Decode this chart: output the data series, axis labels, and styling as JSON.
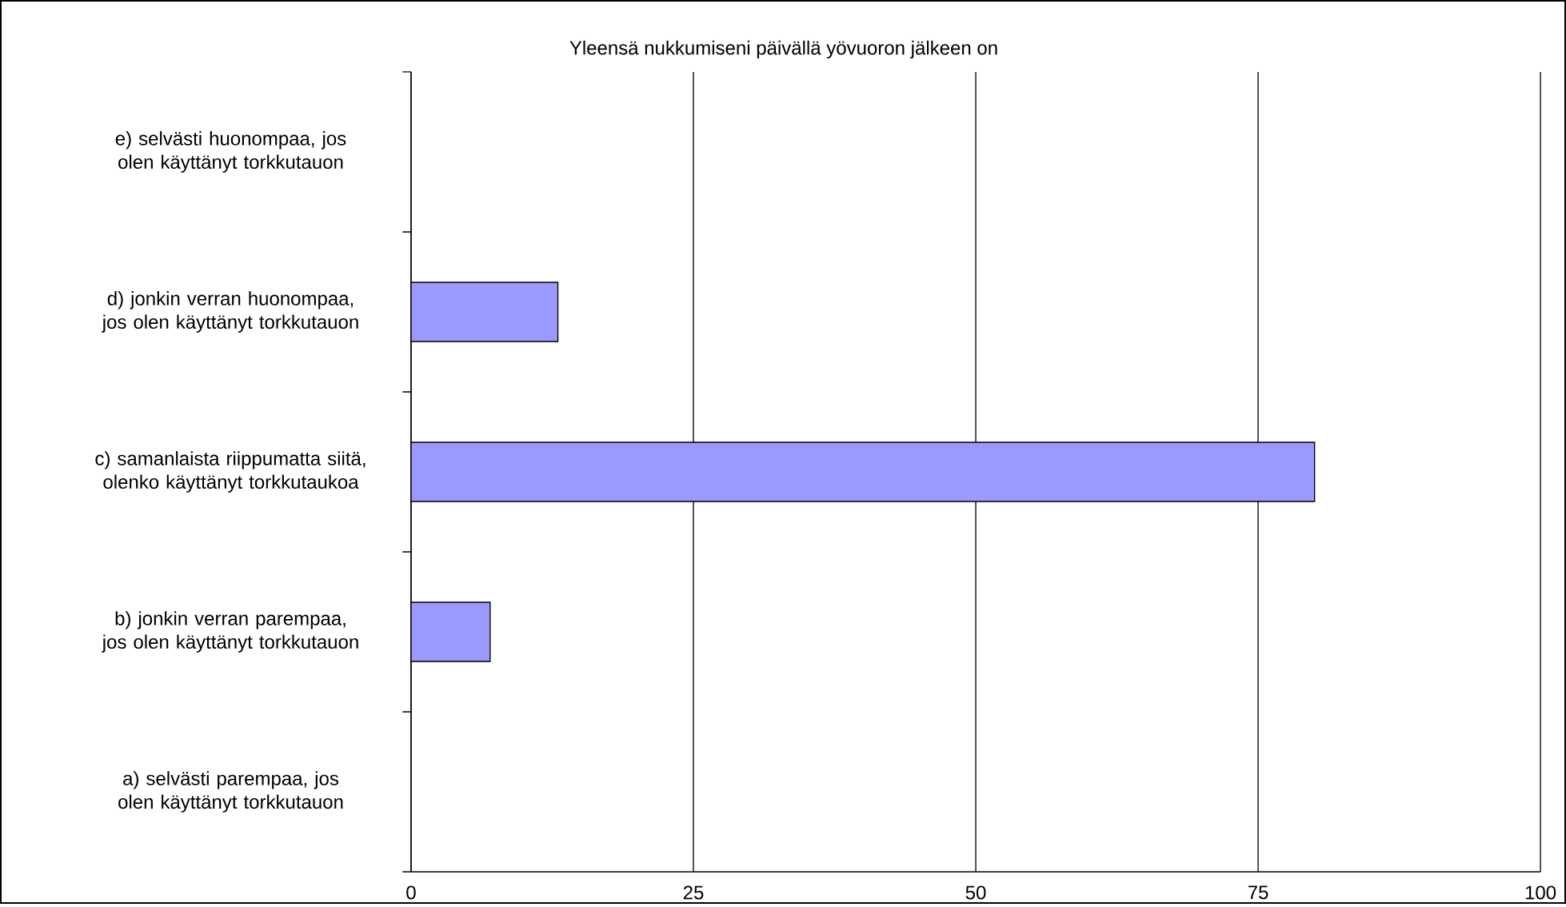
{
  "chart_data": {
    "type": "bar",
    "orientation": "horizontal",
    "title": "Yleensä nukkumiseni päivällä yövuoron jälkeen on",
    "categories": [
      "e) selvästi huonompaa, jos olen käyttänyt torkkutauon",
      "d) jonkin verran huonompaa, jos olen käyttänyt torkkutauon",
      "c) samanlaista riippumatta siitä, olenko käyttänyt torkkutaukoa",
      "b) jonkin verran parempaa, jos olen käyttänyt torkkutauon",
      "a) selvästi parempaa, jos olen käyttänyt torkkutauon"
    ],
    "values": [
      null,
      13,
      80,
      7,
      null
    ],
    "color": "#9999ff",
    "xlim": [
      0,
      100
    ],
    "xticks": [
      0,
      25,
      50,
      75,
      100
    ],
    "grid": "x"
  }
}
